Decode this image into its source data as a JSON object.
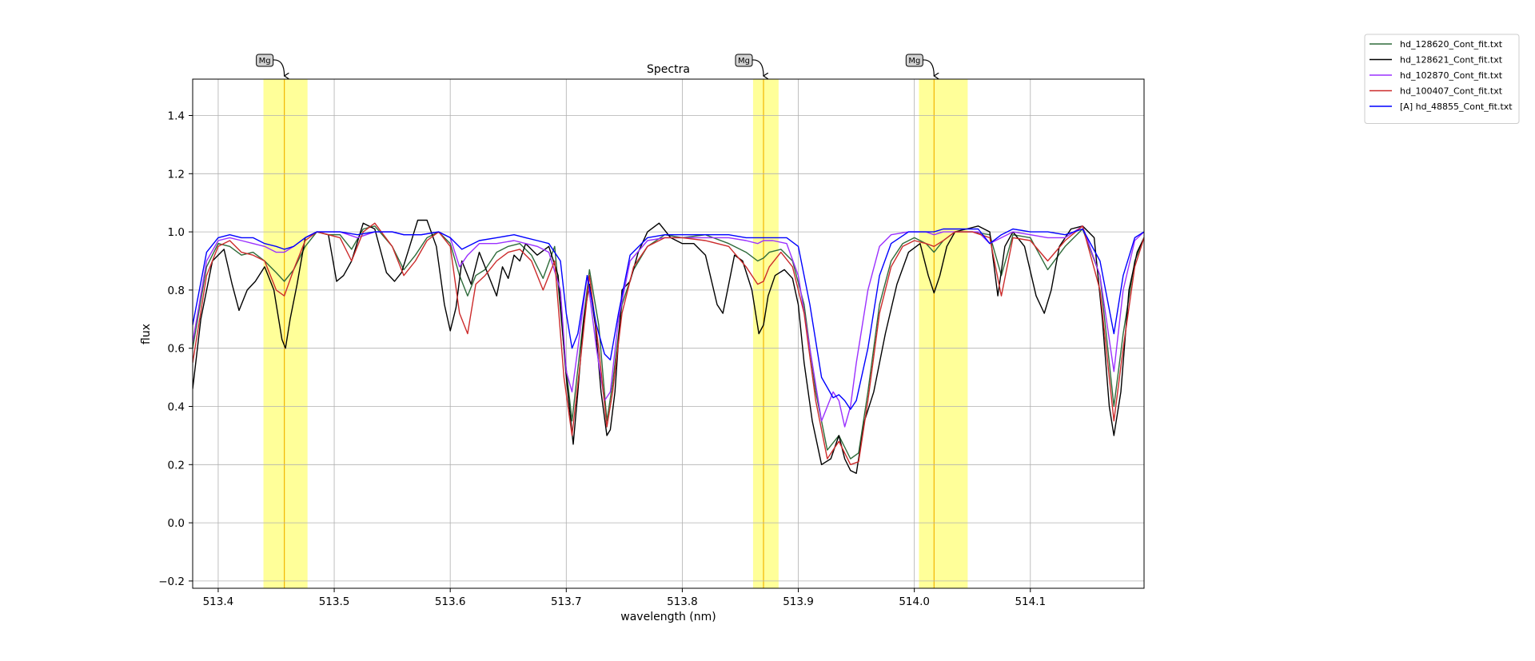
{
  "chart_data": {
    "type": "line",
    "title": "Spectra",
    "xlabel": "wavelength (nm)",
    "ylabel": "flux",
    "xlim": [
      513.378,
      514.198
    ],
    "ylim": [
      -0.225,
      1.525
    ],
    "xticks": [
      513.4,
      513.5,
      513.6,
      513.7,
      513.8,
      513.9,
      514.0,
      514.1
    ],
    "xtick_labels": [
      "513.4",
      "513.5",
      "513.6",
      "513.7",
      "513.8",
      "513.9",
      "514.0",
      "514.1"
    ],
    "yticks": [
      -0.2,
      0.0,
      0.2,
      0.4,
      0.6,
      0.8,
      1.0,
      1.2,
      1.4
    ],
    "ytick_labels": [
      "−0.2",
      "0.0",
      "0.2",
      "0.4",
      "0.6",
      "0.8",
      "1.0",
      "1.2",
      "1.4"
    ],
    "grid": true,
    "legend_position": "outside top-right",
    "highlight_bands": [
      {
        "label": "Mg",
        "center": 513.457,
        "from": 513.439,
        "to": 513.477
      },
      {
        "label": "Mg",
        "center": 513.87,
        "from": 513.861,
        "to": 513.883
      },
      {
        "label": "Mg",
        "center": 514.017,
        "from": 514.004,
        "to": 514.046
      }
    ],
    "band_color": "#ffff99",
    "band_line_color": "#f2b600",
    "series": [
      {
        "name": "hd_128620_Cont_fit.txt",
        "color": "#2e6b3a",
        "x": [
          513.378,
          513.39,
          513.4,
          513.41,
          513.42,
          513.43,
          513.44,
          513.45,
          513.457,
          513.465,
          513.475,
          513.485,
          513.495,
          513.505,
          513.515,
          513.525,
          513.535,
          513.55,
          513.56,
          513.57,
          513.58,
          513.59,
          513.6,
          513.608,
          513.615,
          513.622,
          513.63,
          513.64,
          513.65,
          513.66,
          513.67,
          513.68,
          513.69,
          513.698,
          513.705,
          513.712,
          513.72,
          513.728,
          513.735,
          513.74,
          513.748,
          513.758,
          513.77,
          513.785,
          513.8,
          513.82,
          513.84,
          513.855,
          513.865,
          513.87,
          513.875,
          513.885,
          513.895,
          513.905,
          513.915,
          513.925,
          513.935,
          513.945,
          513.952,
          513.96,
          513.97,
          513.98,
          513.99,
          514.0,
          514.01,
          514.017,
          514.025,
          514.035,
          514.05,
          514.065,
          514.075,
          514.085,
          514.1,
          514.115,
          514.13,
          514.145,
          514.16,
          514.172,
          514.18,
          514.19,
          514.198
        ],
        "y": [
          0.6,
          0.88,
          0.96,
          0.95,
          0.92,
          0.93,
          0.9,
          0.86,
          0.83,
          0.87,
          0.95,
          1.0,
          0.99,
          0.99,
          0.94,
          1.01,
          1.02,
          0.95,
          0.87,
          0.92,
          0.98,
          1.0,
          0.96,
          0.85,
          0.78,
          0.85,
          0.87,
          0.93,
          0.95,
          0.96,
          0.92,
          0.84,
          0.95,
          0.6,
          0.35,
          0.6,
          0.87,
          0.68,
          0.35,
          0.48,
          0.75,
          0.87,
          0.95,
          0.99,
          0.98,
          0.99,
          0.96,
          0.93,
          0.9,
          0.91,
          0.93,
          0.94,
          0.9,
          0.75,
          0.45,
          0.25,
          0.3,
          0.22,
          0.24,
          0.45,
          0.75,
          0.9,
          0.96,
          0.98,
          0.96,
          0.93,
          0.97,
          1.0,
          1.0,
          0.99,
          0.85,
          0.99,
          0.98,
          0.87,
          0.95,
          1.01,
          0.85,
          0.4,
          0.65,
          0.9,
          0.98
        ]
      },
      {
        "name": "hd_128621_Cont_fit.txt",
        "color": "#000000",
        "x": [
          513.378,
          513.385,
          513.395,
          513.405,
          513.412,
          513.418,
          513.425,
          513.432,
          513.44,
          513.448,
          513.455,
          513.458,
          513.462,
          513.468,
          513.475,
          513.485,
          513.495,
          513.502,
          513.508,
          513.515,
          513.525,
          513.535,
          513.545,
          513.552,
          513.558,
          513.565,
          513.572,
          513.58,
          513.588,
          513.595,
          513.6,
          513.605,
          513.61,
          513.618,
          513.625,
          513.632,
          513.64,
          513.645,
          513.65,
          513.655,
          513.66,
          513.665,
          513.675,
          513.685,
          513.693,
          513.7,
          513.706,
          513.71,
          513.715,
          513.72,
          513.725,
          513.73,
          513.735,
          513.738,
          513.742,
          513.748,
          513.755,
          513.762,
          513.77,
          513.78,
          513.79,
          513.8,
          513.81,
          513.82,
          513.83,
          513.835,
          513.84,
          513.845,
          513.852,
          513.86,
          513.866,
          513.87,
          513.874,
          513.88,
          513.888,
          513.895,
          513.9,
          513.905,
          513.912,
          513.92,
          513.928,
          513.935,
          513.94,
          513.945,
          513.95,
          513.957,
          513.965,
          513.975,
          513.985,
          513.995,
          514.005,
          514.012,
          514.017,
          514.022,
          514.028,
          514.035,
          514.045,
          514.055,
          514.065,
          514.072,
          514.078,
          514.085,
          514.095,
          514.105,
          514.112,
          514.118,
          514.125,
          514.135,
          514.145,
          514.155,
          514.162,
          514.168,
          514.172,
          514.178,
          514.185,
          514.192,
          514.198
        ],
        "y": [
          0.46,
          0.7,
          0.9,
          0.94,
          0.82,
          0.73,
          0.8,
          0.83,
          0.88,
          0.8,
          0.63,
          0.6,
          0.7,
          0.82,
          0.98,
          1.0,
          0.99,
          0.83,
          0.85,
          0.9,
          1.03,
          1.01,
          0.86,
          0.83,
          0.86,
          0.95,
          1.04,
          1.04,
          0.95,
          0.75,
          0.66,
          0.74,
          0.9,
          0.82,
          0.93,
          0.86,
          0.78,
          0.88,
          0.84,
          0.92,
          0.9,
          0.96,
          0.92,
          0.95,
          0.85,
          0.5,
          0.27,
          0.45,
          0.7,
          0.82,
          0.68,
          0.45,
          0.3,
          0.32,
          0.45,
          0.8,
          0.83,
          0.93,
          1.0,
          1.03,
          0.98,
          0.96,
          0.96,
          0.92,
          0.75,
          0.72,
          0.82,
          0.92,
          0.9,
          0.8,
          0.65,
          0.68,
          0.78,
          0.85,
          0.87,
          0.84,
          0.75,
          0.55,
          0.35,
          0.2,
          0.22,
          0.3,
          0.22,
          0.18,
          0.17,
          0.35,
          0.45,
          0.65,
          0.82,
          0.93,
          0.96,
          0.85,
          0.79,
          0.85,
          0.95,
          1.0,
          1.01,
          1.02,
          1.0,
          0.78,
          0.95,
          1.0,
          0.95,
          0.78,
          0.72,
          0.8,
          0.95,
          1.01,
          1.02,
          0.98,
          0.7,
          0.4,
          0.3,
          0.45,
          0.8,
          0.93,
          0.98
        ]
      },
      {
        "name": "hd_102870_Cont_fit.txt",
        "color": "#9b30ff",
        "x": [
          513.378,
          513.39,
          513.4,
          513.41,
          513.42,
          513.43,
          513.44,
          513.45,
          513.457,
          513.465,
          513.475,
          513.485,
          513.495,
          513.505,
          513.52,
          513.535,
          513.55,
          513.56,
          513.575,
          513.59,
          513.6,
          513.608,
          513.615,
          513.625,
          513.64,
          513.655,
          513.665,
          513.675,
          513.685,
          513.695,
          513.7,
          513.705,
          513.71,
          513.718,
          513.726,
          513.733,
          513.738,
          513.745,
          513.755,
          513.77,
          513.785,
          513.8,
          513.82,
          513.84,
          513.855,
          513.865,
          513.87,
          513.878,
          513.89,
          513.9,
          513.91,
          513.92,
          513.93,
          513.935,
          513.94,
          513.945,
          513.95,
          513.96,
          513.97,
          513.98,
          513.995,
          514.01,
          514.017,
          514.025,
          514.04,
          514.055,
          514.065,
          514.075,
          514.085,
          514.1,
          514.115,
          514.13,
          514.145,
          514.16,
          514.172,
          514.18,
          514.19,
          514.198
        ],
        "y": [
          0.62,
          0.9,
          0.97,
          0.98,
          0.97,
          0.96,
          0.95,
          0.93,
          0.93,
          0.95,
          0.98,
          1.0,
          1.0,
          1.0,
          0.98,
          1.0,
          1.0,
          0.99,
          0.99,
          1.0,
          0.98,
          0.88,
          0.92,
          0.96,
          0.96,
          0.97,
          0.96,
          0.95,
          0.93,
          0.8,
          0.52,
          0.45,
          0.6,
          0.85,
          0.6,
          0.42,
          0.45,
          0.7,
          0.9,
          0.97,
          0.98,
          0.98,
          0.98,
          0.98,
          0.97,
          0.96,
          0.97,
          0.97,
          0.96,
          0.85,
          0.6,
          0.35,
          0.45,
          0.42,
          0.33,
          0.4,
          0.55,
          0.8,
          0.95,
          0.99,
          1.0,
          1.0,
          0.99,
          1.0,
          1.0,
          1.0,
          0.96,
          0.98,
          1.0,
          0.99,
          0.98,
          0.98,
          1.02,
          0.85,
          0.52,
          0.8,
          0.97,
          1.0
        ]
      },
      {
        "name": "hd_100407_Cont_fit.txt",
        "color": "#cc2b2b",
        "x": [
          513.378,
          513.39,
          513.4,
          513.41,
          513.42,
          513.43,
          513.44,
          513.45,
          513.457,
          513.465,
          513.475,
          513.485,
          513.495,
          513.505,
          513.515,
          513.525,
          513.535,
          513.55,
          513.56,
          513.57,
          513.58,
          513.59,
          513.6,
          513.608,
          513.615,
          513.622,
          513.63,
          513.64,
          513.65,
          513.66,
          513.67,
          513.68,
          513.69,
          513.698,
          513.705,
          513.712,
          513.72,
          513.728,
          513.735,
          513.74,
          513.748,
          513.758,
          513.77,
          513.785,
          513.8,
          513.82,
          513.84,
          513.855,
          513.865,
          513.87,
          513.875,
          513.885,
          513.895,
          513.905,
          513.915,
          513.925,
          513.935,
          513.945,
          513.952,
          513.96,
          513.97,
          513.98,
          513.99,
          514.0,
          514.01,
          514.017,
          514.025,
          514.035,
          514.05,
          514.065,
          514.075,
          514.085,
          514.1,
          514.115,
          514.13,
          514.145,
          514.16,
          514.172,
          514.18,
          514.19,
          514.198
        ],
        "y": [
          0.55,
          0.85,
          0.95,
          0.97,
          0.93,
          0.92,
          0.9,
          0.8,
          0.78,
          0.87,
          0.97,
          1.0,
          0.99,
          0.98,
          0.9,
          1.0,
          1.03,
          0.95,
          0.85,
          0.9,
          0.97,
          1.0,
          0.95,
          0.72,
          0.65,
          0.82,
          0.85,
          0.9,
          0.93,
          0.94,
          0.9,
          0.8,
          0.9,
          0.5,
          0.3,
          0.55,
          0.85,
          0.6,
          0.33,
          0.45,
          0.72,
          0.88,
          0.95,
          0.98,
          0.98,
          0.97,
          0.95,
          0.88,
          0.82,
          0.83,
          0.88,
          0.93,
          0.88,
          0.72,
          0.42,
          0.22,
          0.28,
          0.2,
          0.21,
          0.42,
          0.72,
          0.88,
          0.95,
          0.97,
          0.96,
          0.95,
          0.97,
          1.0,
          1.0,
          0.98,
          0.78,
          0.98,
          0.97,
          0.9,
          0.97,
          1.02,
          0.8,
          0.35,
          0.6,
          0.88,
          0.98
        ]
      },
      {
        "name": "[A] hd_48855_Cont_fit.txt",
        "color": "#0000ff",
        "x": [
          513.378,
          513.39,
          513.4,
          513.41,
          513.42,
          513.43,
          513.44,
          513.45,
          513.457,
          513.465,
          513.475,
          513.485,
          513.495,
          513.505,
          513.52,
          513.535,
          513.55,
          513.56,
          513.575,
          513.59,
          513.6,
          513.61,
          513.625,
          513.64,
          513.655,
          513.665,
          513.675,
          513.685,
          513.695,
          513.7,
          513.705,
          513.71,
          513.718,
          513.726,
          513.733,
          513.738,
          513.745,
          513.755,
          513.77,
          513.785,
          513.8,
          513.82,
          513.84,
          513.855,
          513.865,
          513.87,
          513.878,
          513.89,
          513.9,
          513.91,
          513.92,
          513.93,
          513.935,
          513.94,
          513.945,
          513.95,
          513.96,
          513.97,
          513.98,
          513.995,
          514.01,
          514.017,
          514.025,
          514.04,
          514.055,
          514.065,
          514.075,
          514.085,
          514.1,
          514.115,
          514.13,
          514.145,
          514.16,
          514.172,
          514.18,
          514.19,
          514.198
        ],
        "y": [
          0.68,
          0.93,
          0.98,
          0.99,
          0.98,
          0.98,
          0.96,
          0.95,
          0.94,
          0.95,
          0.98,
          1.0,
          1.0,
          1.0,
          0.99,
          1.0,
          1.0,
          0.99,
          0.99,
          1.0,
          0.98,
          0.94,
          0.97,
          0.98,
          0.99,
          0.98,
          0.97,
          0.96,
          0.9,
          0.72,
          0.6,
          0.65,
          0.85,
          0.68,
          0.58,
          0.56,
          0.72,
          0.92,
          0.98,
          0.99,
          0.99,
          0.99,
          0.99,
          0.98,
          0.98,
          0.98,
          0.98,
          0.98,
          0.95,
          0.75,
          0.5,
          0.43,
          0.44,
          0.42,
          0.39,
          0.42,
          0.6,
          0.85,
          0.96,
          1.0,
          1.0,
          1.0,
          1.01,
          1.01,
          1.01,
          0.96,
          0.99,
          1.01,
          1.0,
          1.0,
          0.99,
          1.01,
          0.9,
          0.65,
          0.85,
          0.98,
          1.0
        ]
      }
    ]
  }
}
